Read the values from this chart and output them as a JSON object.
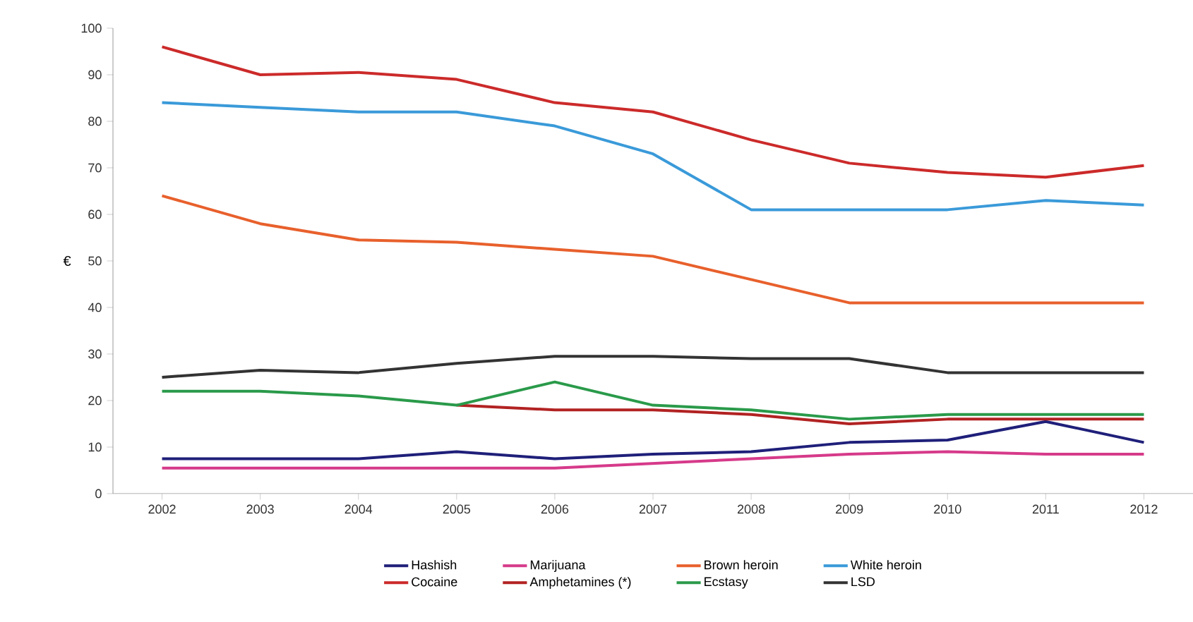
{
  "chart_data": {
    "type": "line",
    "ylabel": "€",
    "categories": [
      "2002",
      "2003",
      "2004",
      "2005",
      "2006",
      "2007",
      "2008",
      "2009",
      "2010",
      "2011",
      "2012"
    ],
    "ylim": [
      0,
      100
    ],
    "yticks": [
      0,
      10,
      20,
      30,
      40,
      50,
      60,
      70,
      80,
      90,
      100
    ],
    "legend": "bottom",
    "grid": false,
    "marker": "none",
    "line_style": "solid",
    "series": [
      {
        "name": "Hashish",
        "color": "#1f1f7a",
        "values": [
          7.5,
          7.5,
          7.5,
          9,
          7.5,
          8.5,
          9,
          11,
          11.5,
          15.5,
          11
        ]
      },
      {
        "name": "Marijuana",
        "color": "#d63a8a",
        "values": [
          5.5,
          5.5,
          5.5,
          5.5,
          5.5,
          6.5,
          7.5,
          8.5,
          9,
          8.5,
          8.5
        ]
      },
      {
        "name": "Brown heroin",
        "color": "#e8602c",
        "values": [
          64,
          58,
          54.5,
          54,
          52.5,
          51,
          46,
          41,
          41,
          41,
          41
        ]
      },
      {
        "name": "White heroin",
        "color": "#3a9ad9",
        "values": [
          84,
          83,
          82,
          82,
          79,
          73,
          61,
          61,
          61,
          63,
          62
        ]
      },
      {
        "name": "Cocaine",
        "color": "#cc2a2a",
        "values": [
          96,
          90,
          90.5,
          89,
          84,
          82,
          76,
          71,
          69,
          68,
          70.5
        ]
      },
      {
        "name": "Amphetamines (*)",
        "color": "#b22222",
        "values": [
          null,
          null,
          null,
          19,
          18,
          18,
          17,
          15,
          16,
          16,
          16
        ]
      },
      {
        "name": "Ecstasy",
        "color": "#2a9a4a",
        "values": [
          22,
          22,
          21,
          19,
          24,
          19,
          18,
          16,
          17,
          17,
          17
        ]
      },
      {
        "name": "LSD",
        "color": "#333333",
        "values": [
          25,
          26.5,
          26,
          28,
          29.5,
          29.5,
          29,
          29,
          26,
          26,
          26
        ]
      }
    ]
  }
}
